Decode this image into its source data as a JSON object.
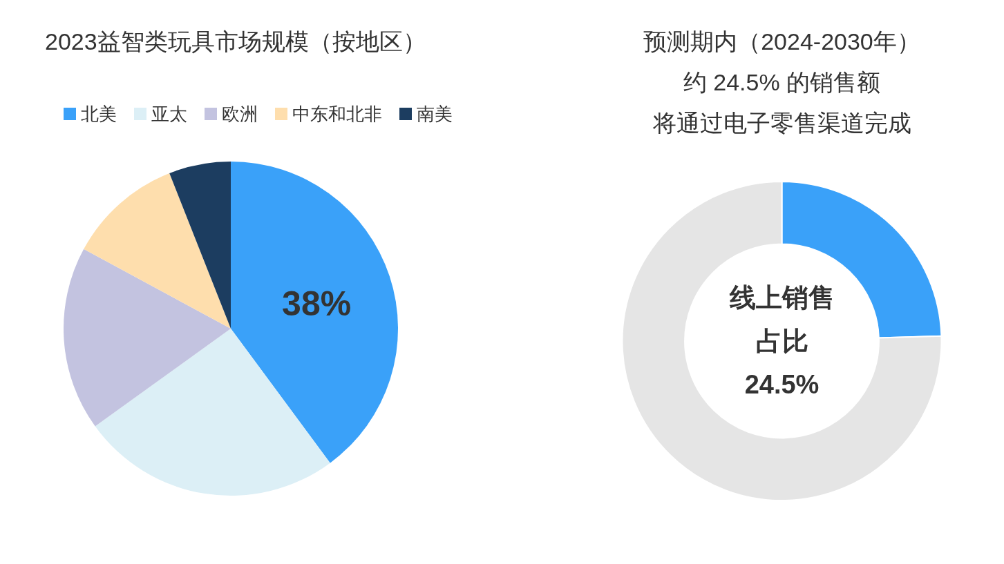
{
  "chart_data": [
    {
      "type": "pie",
      "title": "2023益智类玩具市场规模（按地区）",
      "categories": [
        "北美",
        "亚太",
        "欧洲",
        "中东和北非",
        "南美"
      ],
      "values": [
        38,
        24,
        17,
        10.6,
        5.7
      ],
      "colors": [
        "#3aa1f9",
        "#dceff6",
        "#c3c3e0",
        "#fedead",
        "#1c3d60"
      ],
      "value_labels": [
        "38%",
        null,
        null,
        null,
        null
      ],
      "legend": "top"
    },
    {
      "type": "donut",
      "title": "预测期内（2024-2030年）约 24.5% 的销售额将通过电子零售渠道完成",
      "categories": [
        null,
        null
      ],
      "values": [
        24.5,
        75.5
      ],
      "colors": [
        "#3aa1f9",
        "#e5e5e5"
      ],
      "annotations": [
        "线上销售占比",
        "24.5%"
      ]
    }
  ]
}
